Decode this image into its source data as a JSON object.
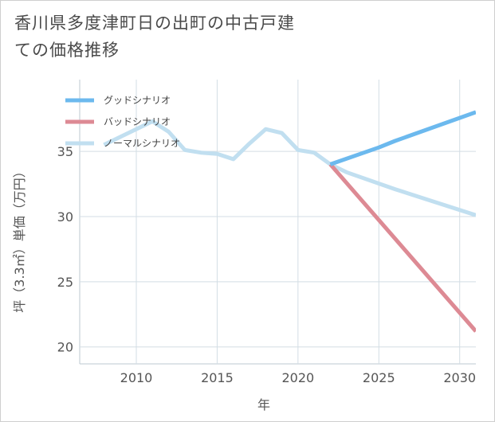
{
  "title": "香川県多度津町日の出町の中古戸建ての価格推移",
  "chart_data": {
    "type": "line",
    "xlabel": "年",
    "ylabel": "坪（3.3㎡）単価（万円）",
    "xlim": [
      2006.5,
      2031
    ],
    "ylim": [
      18.7,
      40.5
    ],
    "xticks": [
      2010,
      2015,
      2020,
      2025,
      2030
    ],
    "yticks": [
      20,
      25,
      30,
      35
    ],
    "grid": true,
    "legend_position": "top-left",
    "series": [
      {
        "name": "グッドシナリオ",
        "color": "#6cb9ee",
        "x": [
          2022,
          2025,
          2026,
          2031
        ],
        "y": [
          34.0,
          35.3,
          35.8,
          38.0
        ]
      },
      {
        "name": "バッドシナリオ",
        "color": "#dd8a94",
        "x": [
          2022,
          2031
        ],
        "y": [
          34.0,
          21.2
        ]
      },
      {
        "name": "ノーマルシナリオ",
        "color": "#c1dff0",
        "x": [
          2008,
          2011,
          2012,
          2013,
          2014,
          2015,
          2016,
          2017,
          2018,
          2019,
          2020,
          2021,
          2022,
          2023,
          2026,
          2031
        ],
        "y": [
          35.5,
          37.3,
          36.5,
          35.1,
          34.9,
          34.8,
          34.4,
          35.6,
          36.7,
          36.4,
          35.1,
          34.9,
          34.0,
          33.4,
          32.1,
          30.1
        ]
      }
    ]
  }
}
